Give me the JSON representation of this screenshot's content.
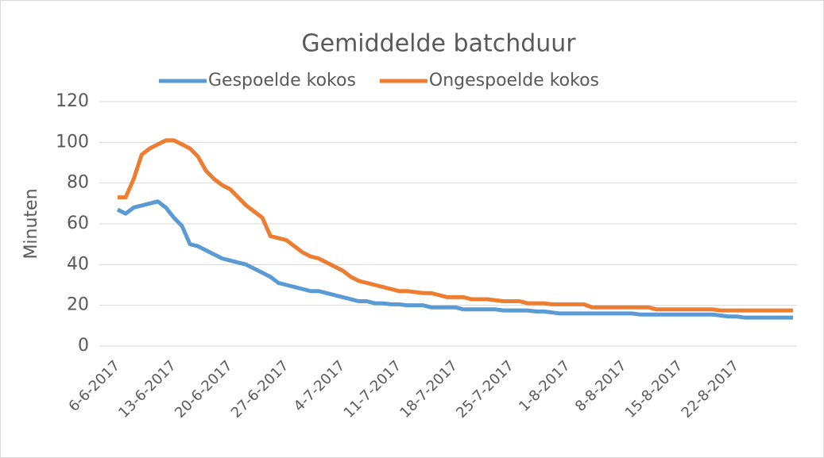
{
  "chart_data": {
    "type": "line",
    "title": "Gemiddelde batchduur",
    "y_label": "Minuten",
    "categories": [
      "6-6-2017",
      null,
      null,
      null,
      null,
      null,
      null,
      "13-6-2017",
      null,
      null,
      null,
      null,
      null,
      null,
      "20-6-2017",
      null,
      null,
      null,
      null,
      null,
      null,
      "27-6-2017",
      null,
      null,
      null,
      null,
      null,
      null,
      "4-7-2017",
      null,
      null,
      null,
      null,
      null,
      null,
      "11-7-2017",
      null,
      null,
      null,
      null,
      null,
      null,
      "18-7-2017",
      null,
      null,
      null,
      null,
      null,
      null,
      "25-7-2017",
      null,
      null,
      null,
      null,
      null,
      null,
      "1-8-2017",
      null,
      null,
      null,
      null,
      null,
      null,
      "8-8-2017",
      null,
      null,
      null,
      null,
      null,
      null,
      "15-8-2017",
      null,
      null,
      null,
      null,
      null,
      null,
      "22-8-2017",
      null,
      null,
      null,
      null,
      null,
      null,
      null
    ],
    "series": [
      {
        "name": "Gespoelde kokos",
        "color": "#5b9bd5",
        "values": [
          67,
          65,
          68,
          69,
          70,
          71,
          68,
          63,
          59,
          50,
          49,
          47,
          45,
          43,
          42,
          41,
          40,
          38,
          36,
          34,
          31,
          30,
          29,
          28,
          27,
          27,
          26,
          25,
          24,
          23,
          22,
          22,
          21,
          21,
          20.5,
          20.5,
          20,
          20,
          20,
          19,
          19,
          19,
          19,
          18,
          18,
          18,
          18,
          18,
          17.5,
          17.5,
          17.5,
          17.5,
          17,
          17,
          16.5,
          16,
          16,
          16,
          16,
          16,
          16,
          16,
          16,
          16,
          16,
          15.5,
          15.5,
          15.5,
          15.5,
          15.5,
          15.5,
          15.5,
          15.5,
          15.5,
          15.5,
          15,
          14.5,
          14.5,
          14,
          14,
          14,
          14,
          14,
          14,
          14
        ]
      },
      {
        "name": "Ongespoelde kokos",
        "color": "#ed7d31",
        "values": [
          73,
          73,
          82,
          94,
          97,
          99,
          101,
          101,
          99,
          97,
          93,
          86,
          82,
          79,
          77,
          73,
          69,
          66,
          63,
          54,
          53,
          52,
          49,
          46,
          44,
          43,
          41,
          39,
          37,
          34,
          32,
          31,
          30,
          29,
          28,
          27,
          27,
          26.5,
          26,
          26,
          25,
          24,
          24,
          24,
          23,
          23,
          23,
          22.5,
          22,
          22,
          22,
          21,
          21,
          21,
          20.5,
          20.5,
          20.5,
          20.5,
          20.5,
          19,
          19,
          19,
          19,
          19,
          19,
          19,
          19,
          18,
          18,
          18,
          18,
          18,
          18,
          18,
          18,
          17.5,
          17.5,
          17.5,
          17.5,
          17.5,
          17.5,
          17.5,
          17.5,
          17.5,
          17.5
        ]
      }
    ],
    "ylim": [
      0,
      120
    ],
    "yticks": [
      0,
      20,
      40,
      60,
      80,
      100,
      120
    ],
    "grid": true,
    "legend": "top"
  }
}
